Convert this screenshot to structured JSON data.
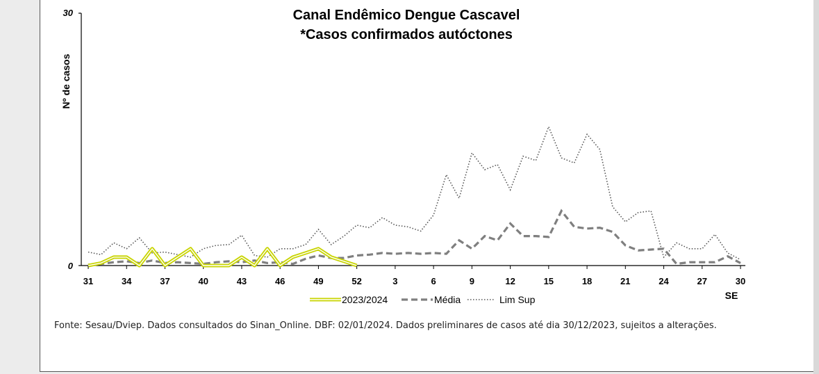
{
  "chart_data": {
    "type": "line",
    "title": "Canal Endêmico Dengue Cascavel",
    "subtitle": "*Casos confirmados autóctones",
    "ylabel": "Nº de casos",
    "xlabel": "SE",
    "ylim": [
      0,
      30
    ],
    "y_ticks": [
      "0",
      "30"
    ],
    "x_ticks": [
      "31",
      "34",
      "37",
      "40",
      "43",
      "46",
      "49",
      "52",
      "3",
      "6",
      "9",
      "12",
      "15",
      "18",
      "21",
      "24",
      "27",
      "30"
    ],
    "x_weeks": [
      31,
      32,
      33,
      34,
      35,
      36,
      37,
      38,
      39,
      40,
      41,
      42,
      43,
      44,
      45,
      46,
      47,
      48,
      49,
      50,
      51,
      52,
      1,
      2,
      3,
      4,
      5,
      6,
      7,
      8,
      9,
      10,
      11,
      12,
      13,
      14,
      15,
      16,
      17,
      18,
      19,
      20,
      21,
      22,
      23,
      24,
      25,
      26,
      27,
      28,
      29,
      30
    ],
    "series": [
      {
        "name": "2023/2024",
        "color": "#c8d400",
        "style": "solid-double",
        "values": [
          0,
          0.3,
          1,
          1,
          0,
          2,
          0,
          1,
          2,
          0,
          0,
          0,
          1,
          0,
          2,
          0,
          1,
          1.5,
          2,
          1,
          0.5,
          0
        ]
      },
      {
        "name": "Média",
        "color": "#7f7f7f",
        "style": "dashed",
        "values": [
          0.1,
          0.2,
          0.4,
          0.5,
          0.3,
          0.6,
          0.3,
          0.4,
          0.3,
          0.2,
          0.4,
          0.5,
          0.4,
          0.6,
          0.3,
          0.4,
          0.2,
          0.8,
          1.2,
          0.9,
          0.9,
          1.2,
          1.3,
          1.5,
          1.4,
          1.5,
          1.4,
          1.5,
          1.4,
          3,
          2,
          3.5,
          3,
          5,
          3.5,
          3.5,
          3.4,
          6.5,
          4.6,
          4.4,
          4.5,
          4,
          2.4,
          1.8,
          1.9,
          2,
          0.2,
          0.4,
          0.4,
          0.4,
          1.1,
          0.3
        ]
      },
      {
        "name": "Lim Sup",
        "color": "#555555",
        "style": "dotted",
        "values": [
          1.6,
          1.3,
          2.7,
          2,
          3.3,
          1.5,
          1.6,
          1.3,
          1,
          2,
          2.4,
          2.5,
          3.6,
          1.2,
          1,
          2,
          2,
          2.5,
          4.3,
          2.5,
          3.5,
          4.8,
          4.5,
          5.7,
          4.8,
          4.6,
          4.1,
          6,
          10.8,
          8,
          13.4,
          11.4,
          12,
          9,
          13,
          12.5,
          16.5,
          12.8,
          12.2,
          15.6,
          13.8,
          7,
          5.2,
          6.3,
          6.5,
          1,
          2.7,
          2,
          2,
          3.7,
          1.5,
          0.7
        ]
      }
    ],
    "legend_position": "bottom-center",
    "grid": false
  },
  "source": {
    "text": "Fonte: Sesau/Dviep. Dados consultados do Sinan_Online. DBF: 02/01/2024. Dados preliminares de casos até dia 30/12/2023, sujeitos a alterações."
  }
}
